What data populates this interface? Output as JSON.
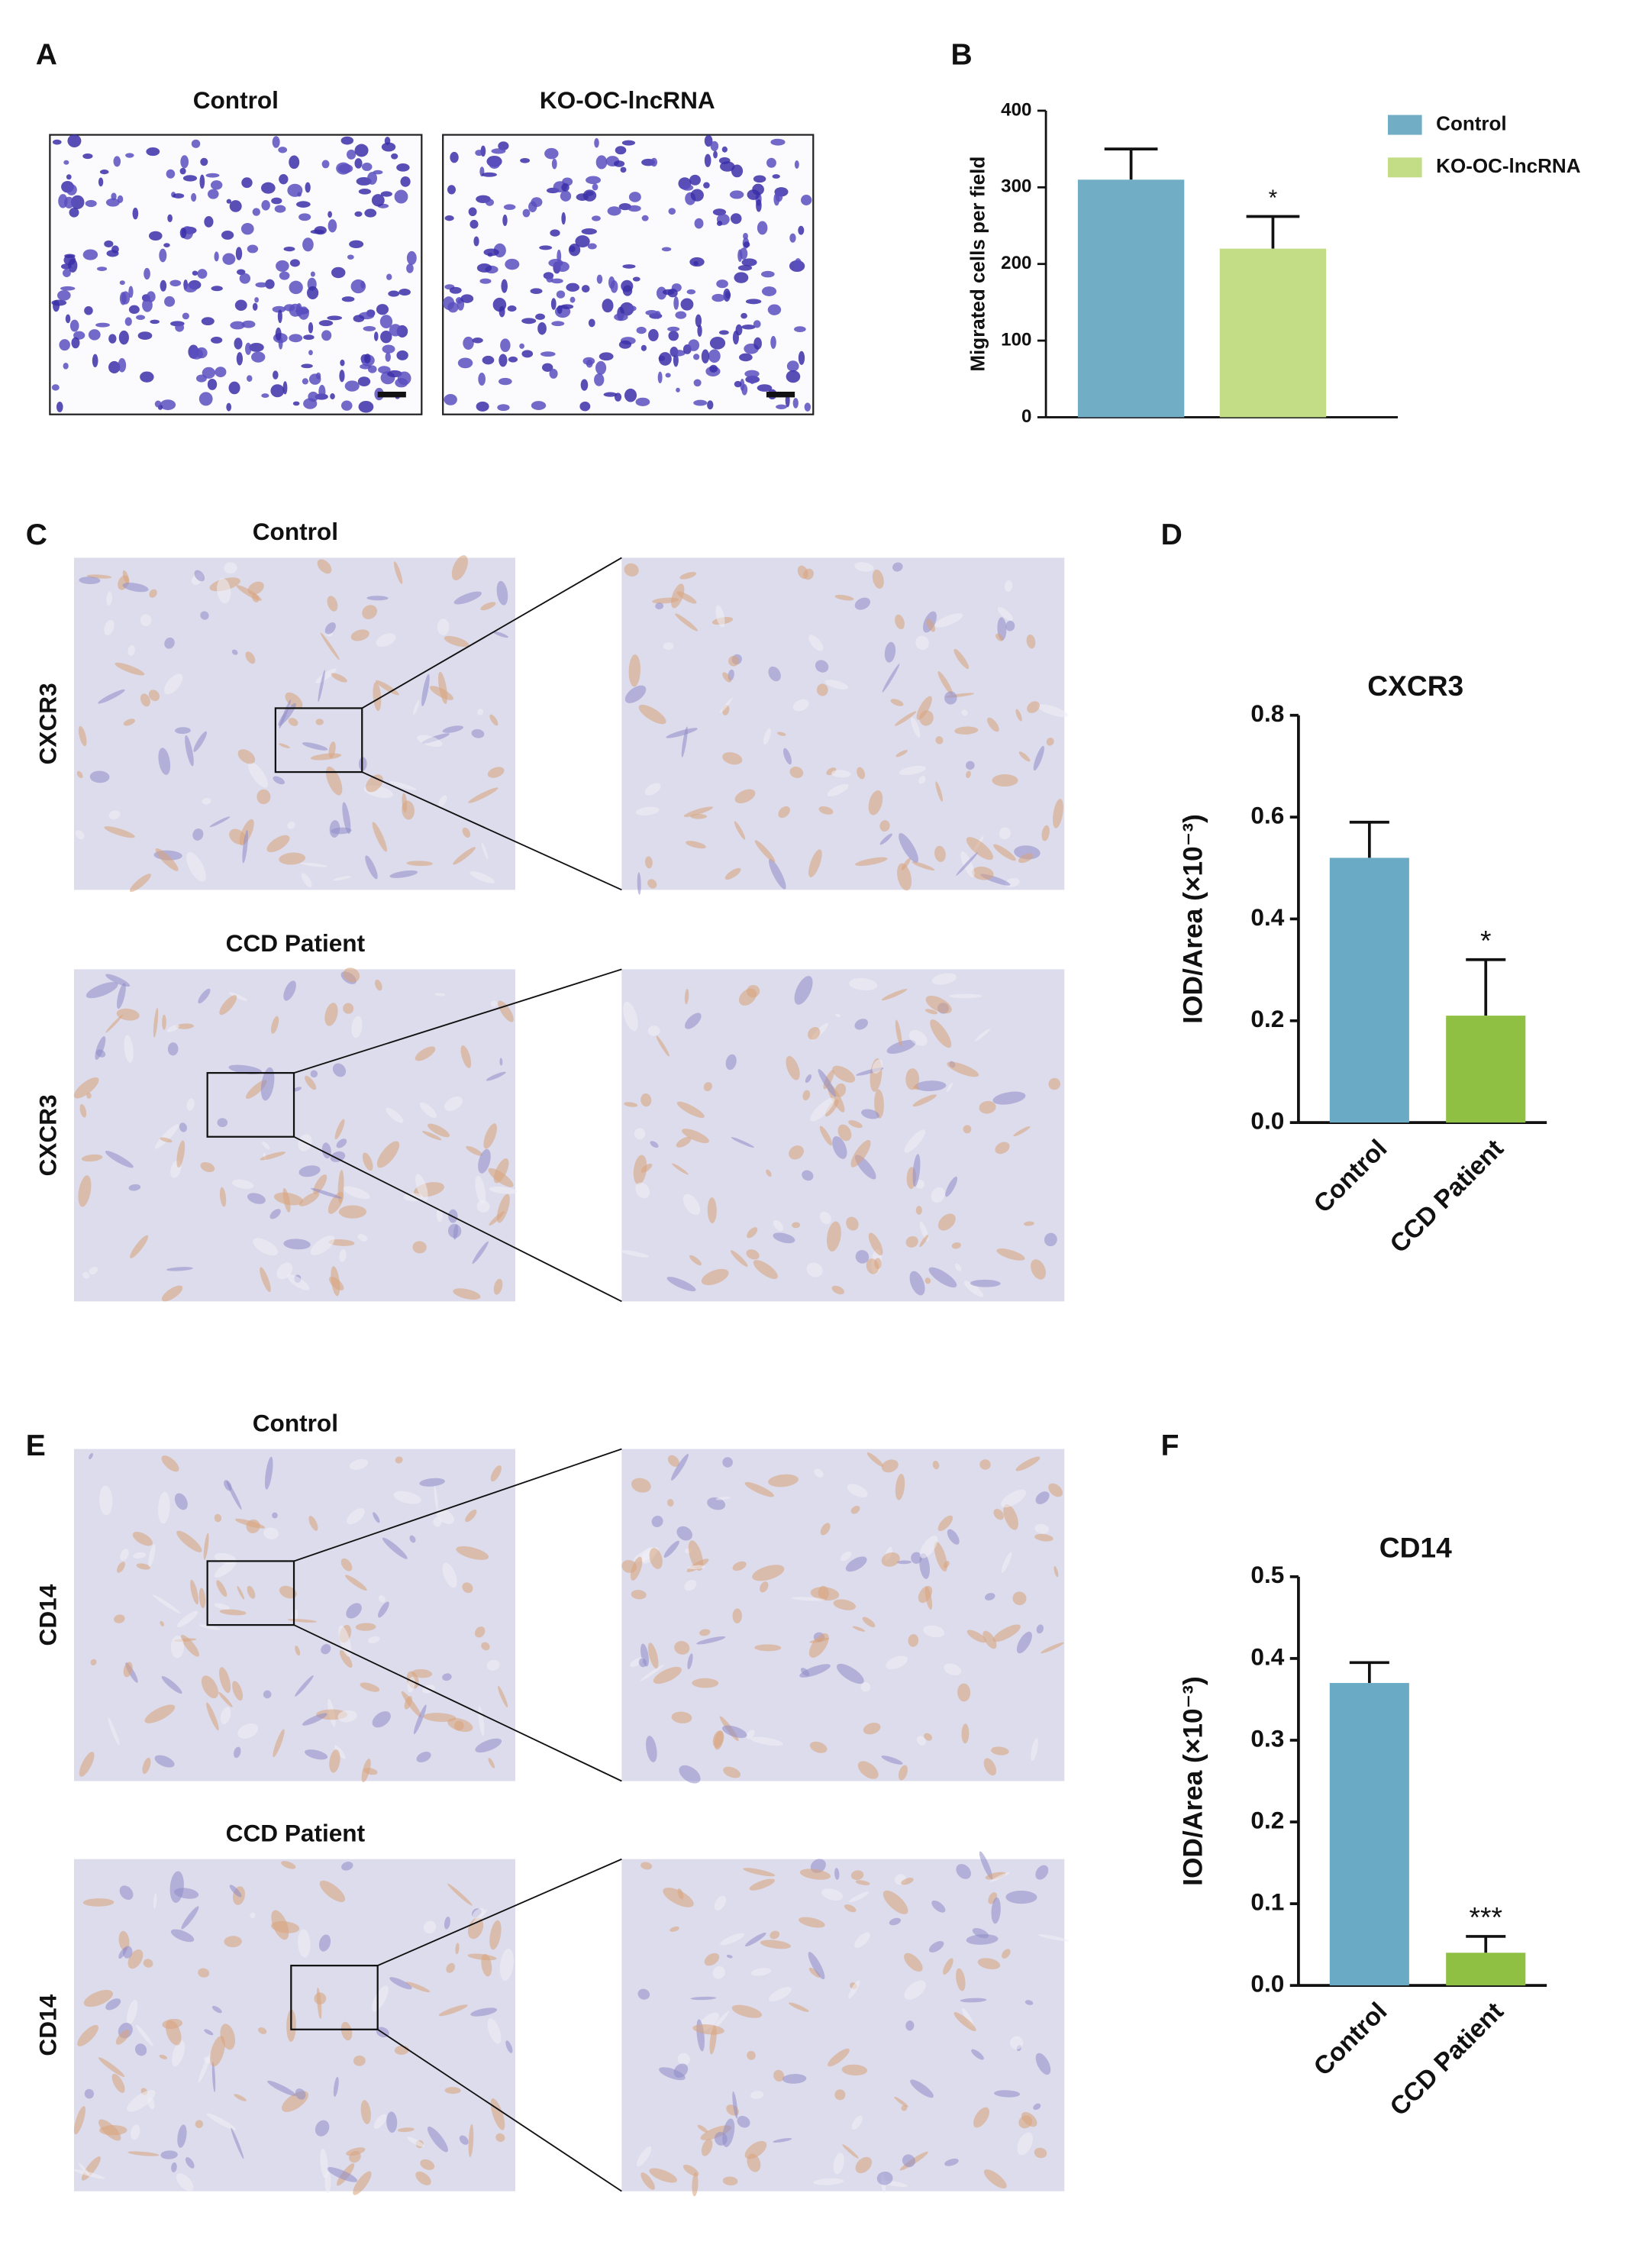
{
  "panel_labels": [
    "A",
    "B",
    "C",
    "D",
    "E",
    "F"
  ],
  "panel_a": {
    "labels": [
      "Control",
      "KO-OC-lncRNA"
    ]
  },
  "panel_c": {
    "rows": [
      {
        "title": "Control",
        "stain": "CXCR3"
      },
      {
        "title": "CCD Patient",
        "stain": "CXCR3"
      }
    ]
  },
  "panel_e": {
    "rows": [
      {
        "title": "Control",
        "stain": "CD14"
      },
      {
        "title": "CCD Patient",
        "stain": "CD14"
      }
    ]
  },
  "chart_data": [
    {
      "type": "bar",
      "ylabel": "Migrated cells per field",
      "categories": [
        "Control",
        "KO-OC-lncRNA"
      ],
      "values": [
        310,
        220
      ],
      "errors": [
        40,
        42
      ],
      "colors": [
        "#72adc6",
        "#c3dd86"
      ],
      "significance": [
        null,
        "*"
      ],
      "ylim": [
        0,
        400
      ],
      "yticks": [
        0,
        100,
        200,
        300,
        400
      ],
      "legend": "right"
    },
    {
      "type": "bar",
      "title": "CXCR3",
      "ylabel": "IOD/Area (×10⁻³)",
      "categories": [
        "Control",
        "CCD Patient"
      ],
      "values": [
        0.52,
        0.21
      ],
      "errors": [
        0.07,
        0.11
      ],
      "colors": [
        "#6aaac5",
        "#8fc043"
      ],
      "significance": [
        null,
        "*"
      ],
      "ylim": [
        0,
        0.8
      ],
      "yticks": [
        {
          "value": 0,
          "label": "0.0"
        },
        0.2,
        0.4,
        0.6,
        0.8
      ]
    },
    {
      "type": "bar",
      "title": "CD14",
      "ylabel": "IOD/Area (×10⁻³)",
      "categories": [
        "Control",
        "CCD Patient"
      ],
      "values": [
        0.37,
        0.04
      ],
      "errors": [
        0.025,
        0.02
      ],
      "colors": [
        "#6aaac5",
        "#8fc043"
      ],
      "significance": [
        null,
        "***"
      ],
      "ylim": [
        0,
        0.5
      ],
      "yticks": [
        {
          "value": 0,
          "label": "0.0"
        },
        0.1,
        0.2,
        0.3,
        0.4,
        0.5
      ]
    }
  ]
}
